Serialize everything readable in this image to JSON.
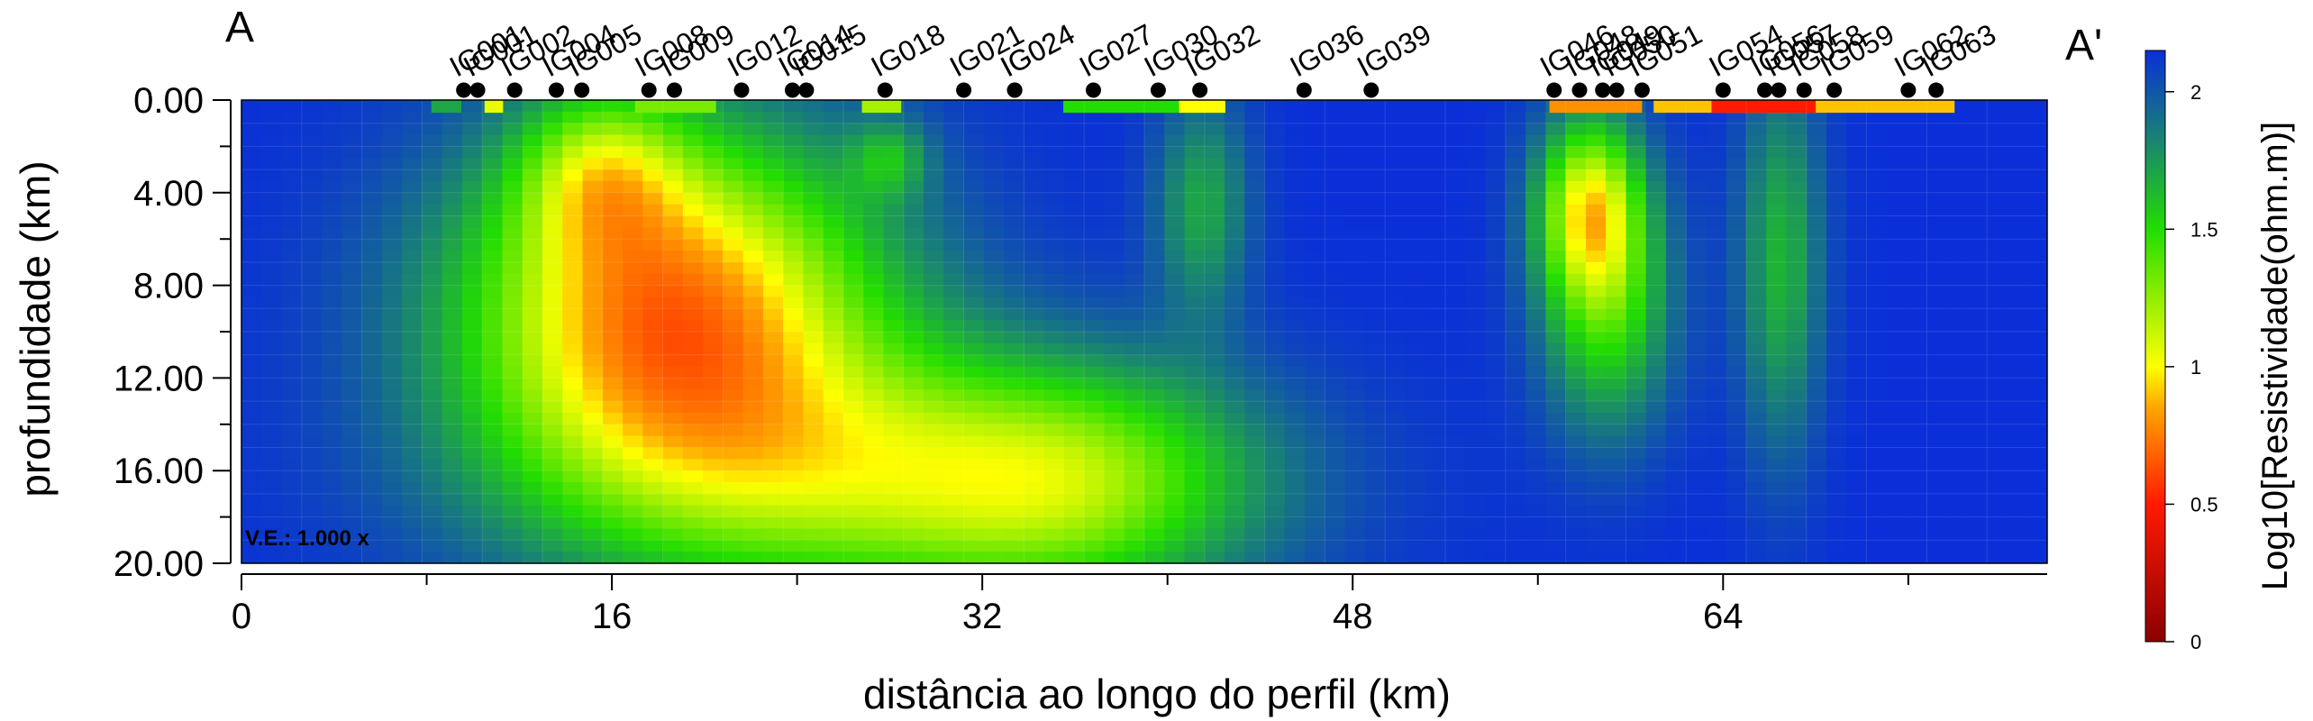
{
  "chart_data": {
    "type": "heatmap",
    "title": "",
    "section_start_label": "A",
    "section_end_label": "A'",
    "xlabel": "distância ao longo do perfil (km)",
    "ylabel": "profundidade (km)",
    "xlim": [
      0,
      78
    ],
    "ylim": [
      0,
      20
    ],
    "x_ticks": [
      0,
      16,
      32,
      48,
      64
    ],
    "x_tick_labels": [
      "0",
      "16",
      "32",
      "48",
      "64"
    ],
    "y_ticks": [
      0,
      4,
      8,
      12,
      16,
      20
    ],
    "y_tick_labels": [
      "0.00",
      "4.00",
      "8.00",
      "12.00",
      "16.00",
      "20.00"
    ],
    "vertical_exaggeration": "V.E.: 1.000 x",
    "colorbar": {
      "label": "Log10[Resistividade(ohm.m)]",
      "range": [
        0,
        2.15
      ],
      "ticks": [
        0,
        0.5,
        1,
        1.5,
        2
      ],
      "tick_labels": [
        "0",
        "0.5",
        "1",
        "1.5",
        "2"
      ],
      "stops": [
        {
          "value": 0.0,
          "color": "#8b0000"
        },
        {
          "value": 0.5,
          "color": "#ff1a00"
        },
        {
          "value": 0.85,
          "color": "#ffa500"
        },
        {
          "value": 1.0,
          "color": "#ffff00"
        },
        {
          "value": 1.5,
          "color": "#22dd00"
        },
        {
          "value": 1.8,
          "color": "#1a8a6a"
        },
        {
          "value": 2.15,
          "color": "#0a2fd8"
        }
      ]
    },
    "background_log10_resistivity": 2.15,
    "anomalies": [
      {
        "x": 18.5,
        "z": 9.0,
        "sx": 6.5,
        "sz": 5.5,
        "amp": 1.4
      },
      {
        "x": 27.0,
        "z": 16.5,
        "sx": 10.0,
        "sz": 4.0,
        "amp": 0.75
      },
      {
        "x": 36.0,
        "z": 16.5,
        "sx": 5.5,
        "sz": 3.5,
        "amp": 0.55
      },
      {
        "x": 15.5,
        "z": 3.0,
        "sx": 2.5,
        "sz": 2.5,
        "amp": 0.55
      },
      {
        "x": 28.0,
        "z": 2.5,
        "sx": 1.2,
        "sz": 1.2,
        "amp": 0.35
      },
      {
        "x": 41.5,
        "z": 4.5,
        "sx": 1.5,
        "sz": 3.5,
        "amp": 0.45
      },
      {
        "x": 58.2,
        "z": 4.5,
        "sx": 1.6,
        "sz": 2.8,
        "amp": 0.95
      },
      {
        "x": 59.0,
        "z": 9.0,
        "sx": 2.0,
        "sz": 4.0,
        "amp": 0.65
      },
      {
        "x": 66.5,
        "z": 7.0,
        "sx": 1.3,
        "sz": 6.0,
        "amp": 0.5
      }
    ],
    "surface_features": [
      {
        "x0": 8.2,
        "x1": 9.5,
        "value": 1.7
      },
      {
        "x0": 10.5,
        "x1": 11.3,
        "value": 1.05
      },
      {
        "x0": 17.0,
        "x1": 20.5,
        "value": 1.3
      },
      {
        "x0": 26.8,
        "x1": 28.5,
        "value": 1.2
      },
      {
        "x0": 35.5,
        "x1": 42.5,
        "value": 1.5
      },
      {
        "x0": 40.5,
        "x1": 42.5,
        "value": 1.0
      },
      {
        "x0": 56.5,
        "x1": 60.5,
        "value": 0.8
      },
      {
        "x0": 61.0,
        "x1": 74.0,
        "value": 0.9
      },
      {
        "x0": 63.5,
        "x1": 68.0,
        "value": 0.5
      }
    ],
    "stations": [
      {
        "name": "IG001",
        "x": 9.6
      },
      {
        "name": "IG001",
        "x": 10.2
      },
      {
        "name": "IG002",
        "x": 11.8
      },
      {
        "name": "IG004",
        "x": 13.6
      },
      {
        "name": "IG005",
        "x": 14.7
      },
      {
        "name": "IG008",
        "x": 17.6
      },
      {
        "name": "IG009",
        "x": 18.7
      },
      {
        "name": "IG012",
        "x": 21.6
      },
      {
        "name": "IG014",
        "x": 23.8
      },
      {
        "name": "IG015",
        "x": 24.4
      },
      {
        "name": "IG018",
        "x": 27.8
      },
      {
        "name": "IG021",
        "x": 31.2
      },
      {
        "name": "IG024",
        "x": 33.4
      },
      {
        "name": "IG024",
        "x": 33.4
      },
      {
        "name": "IG027",
        "x": 36.8
      },
      {
        "name": "IG030",
        "x": 39.6
      },
      {
        "name": "IG032",
        "x": 41.4
      },
      {
        "name": "IG036",
        "x": 45.9
      },
      {
        "name": "IG039",
        "x": 48.8
      },
      {
        "name": "IG046",
        "x": 56.7
      },
      {
        "name": "IG048",
        "x": 57.8
      },
      {
        "name": "IG049",
        "x": 58.8
      },
      {
        "name": "IG050",
        "x": 59.4
      },
      {
        "name": "IG051",
        "x": 60.5
      },
      {
        "name": "IG054",
        "x": 64.0
      },
      {
        "name": "IG056",
        "x": 65.8
      },
      {
        "name": "IG057",
        "x": 66.4
      },
      {
        "name": "IG058",
        "x": 67.5
      },
      {
        "name": "IG059",
        "x": 68.8
      },
      {
        "name": "IG062",
        "x": 72.0
      },
      {
        "name": "IG063",
        "x": 73.2
      }
    ]
  }
}
